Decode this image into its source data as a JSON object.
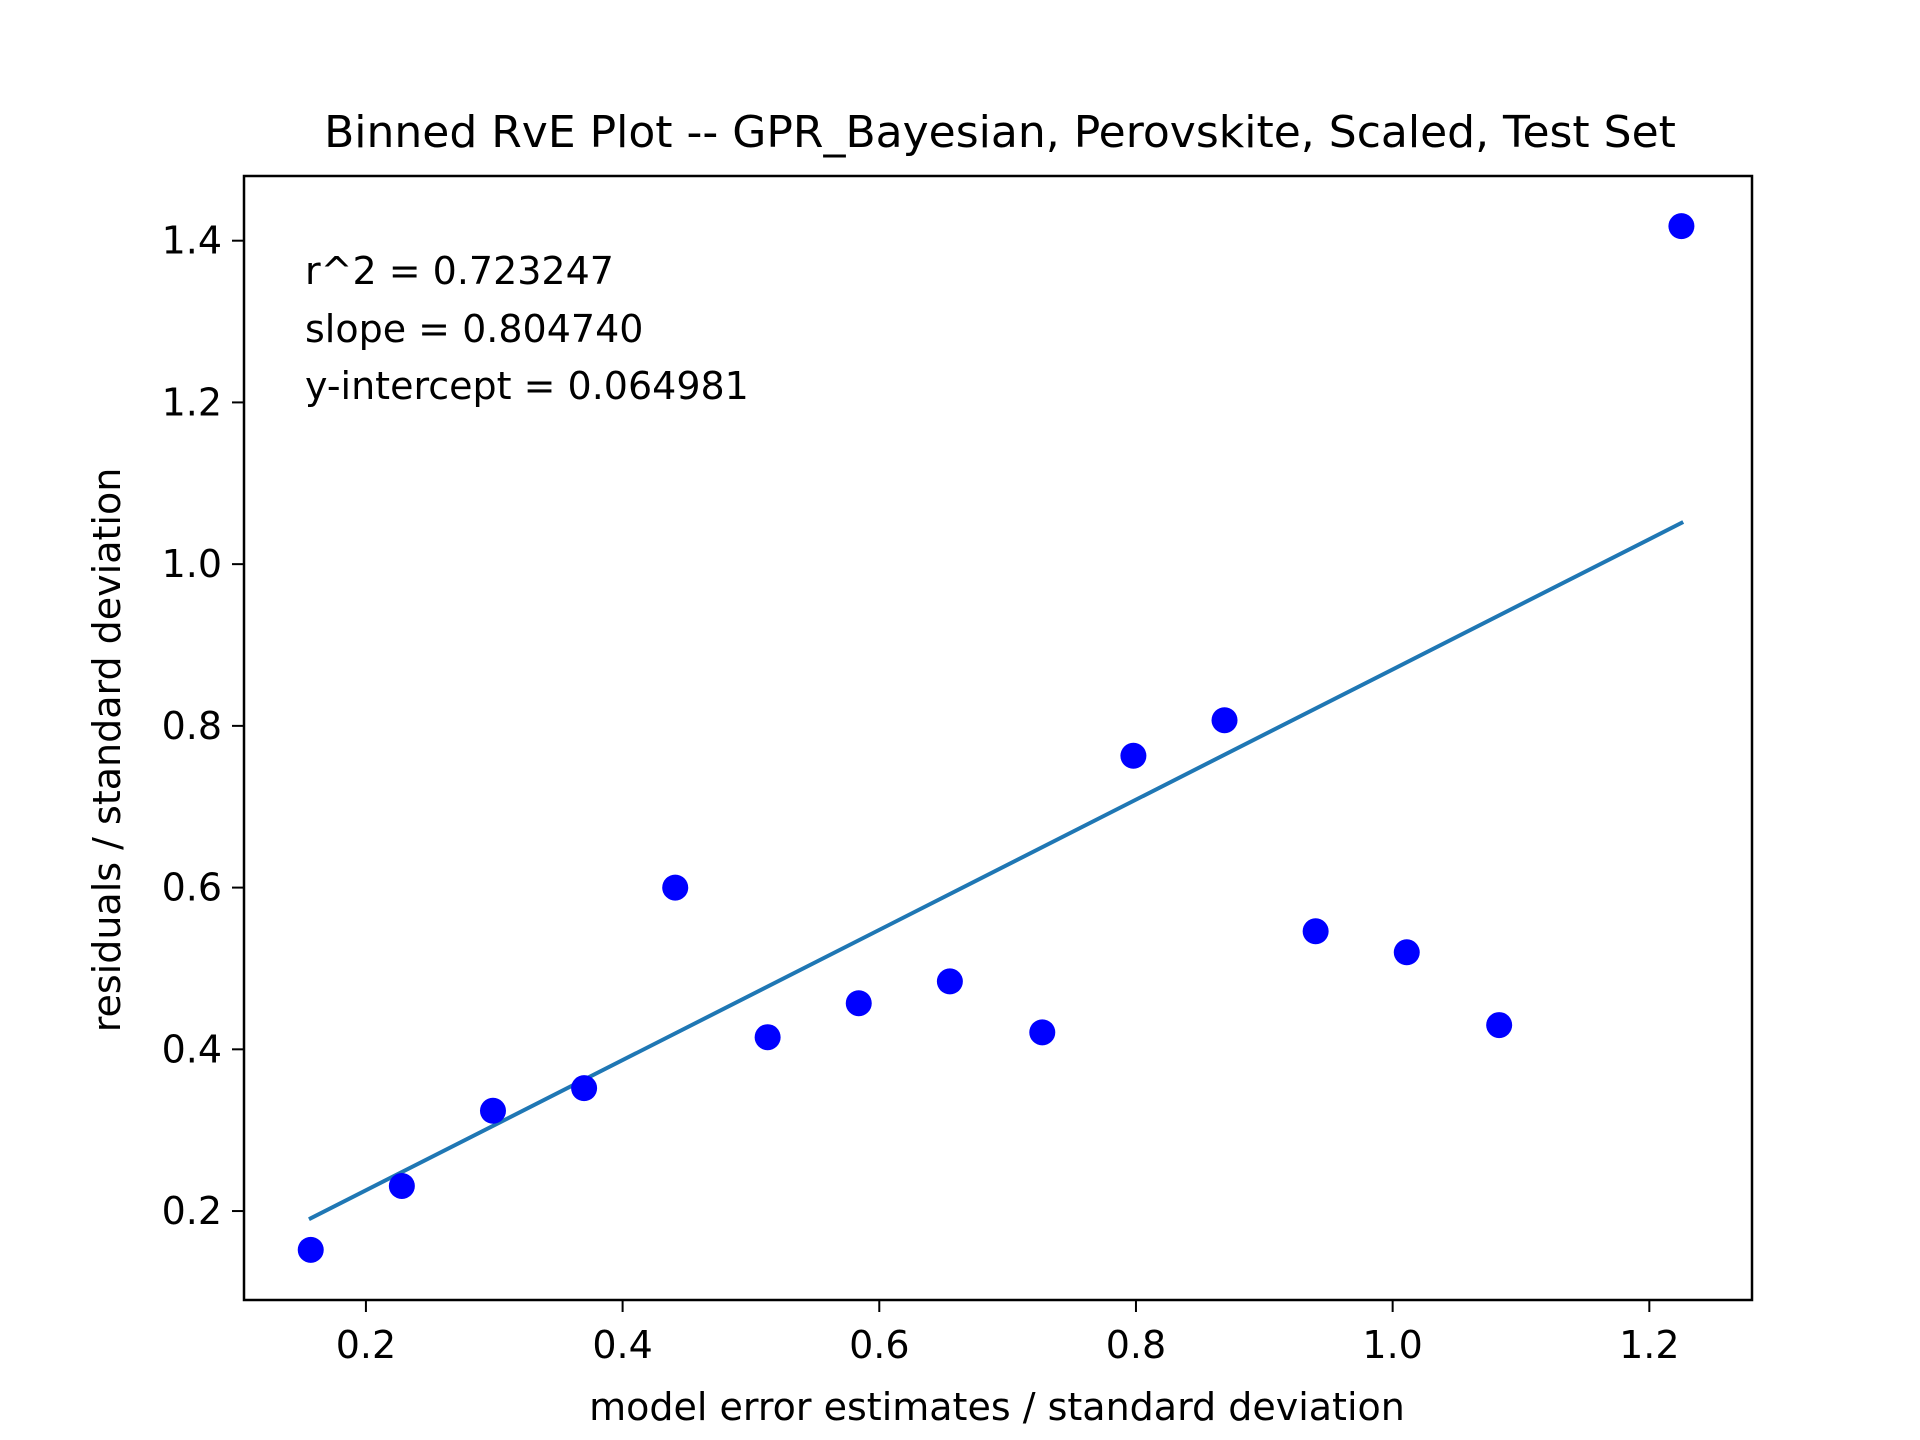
{
  "chart_data": {
    "type": "scatter",
    "title": "Binned RvE Plot -- GPR_Bayesian, Perovskite, Scaled, Test Set",
    "xlabel": "model error estimates / standard deviation",
    "ylabel": "residuals / standard deviation",
    "xlim": [
      0.105,
      1.28
    ],
    "ylim": [
      0.09,
      1.48
    ],
    "xticks": [
      0.2,
      0.4,
      0.6,
      0.8,
      1.0,
      1.2
    ],
    "xtick_labels": [
      "0.2",
      "0.4",
      "0.6",
      "0.8",
      "1.0",
      "1.2"
    ],
    "yticks": [
      0.2,
      0.4,
      0.6,
      0.8,
      1.0,
      1.2,
      1.4
    ],
    "ytick_labels": [
      "0.2",
      "0.4",
      "0.6",
      "0.8",
      "1.0",
      "1.2",
      "1.4"
    ],
    "grid": false,
    "points": {
      "color": "#0000ff",
      "x": [
        0.157,
        0.228,
        0.299,
        0.37,
        0.441,
        0.513,
        0.584,
        0.655,
        0.727,
        0.798,
        0.869,
        0.94,
        1.011,
        1.083,
        1.225
      ],
      "y": [
        0.152,
        0.231,
        0.324,
        0.352,
        0.6,
        0.415,
        0.457,
        0.484,
        0.421,
        0.763,
        0.807,
        0.546,
        0.52,
        0.43,
        1.418
      ]
    },
    "fit_line": {
      "color": "#1f77b4",
      "x": [
        0.157,
        1.225
      ],
      "y": [
        0.191,
        1.051
      ]
    },
    "annotations": [
      "r^2 = 0.723247",
      "slope = 0.804740",
      "y-intercept = 0.064981"
    ]
  }
}
